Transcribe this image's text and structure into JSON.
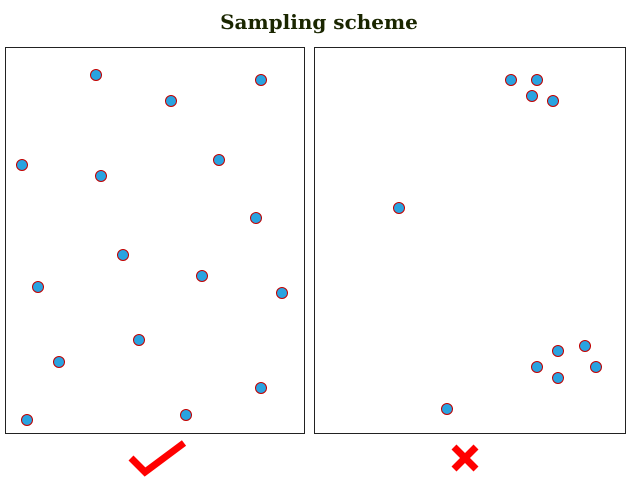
{
  "title": "Sampling scheme",
  "colors": {
    "dot_fill": "#29a3e0",
    "dot_border": "#c00000",
    "mark": "#ff0000",
    "panel_border": "#222222"
  },
  "panels": [
    {
      "name": "good-sampling-panel",
      "verdict_icon": "check-icon",
      "points": [
        [
          90,
          27
        ],
        [
          165,
          53
        ],
        [
          255,
          32
        ],
        [
          16,
          117
        ],
        [
          95,
          128
        ],
        [
          213,
          112
        ],
        [
          250,
          170
        ],
        [
          117,
          207
        ],
        [
          196,
          228
        ],
        [
          32,
          239
        ],
        [
          276,
          245
        ],
        [
          133,
          292
        ],
        [
          53,
          314
        ],
        [
          255,
          340
        ],
        [
          21,
          372
        ],
        [
          180,
          367
        ]
      ]
    },
    {
      "name": "bad-sampling-panel",
      "verdict_icon": "cross-icon",
      "points": [
        [
          196,
          32
        ],
        [
          222,
          32
        ],
        [
          217,
          48
        ],
        [
          238,
          53
        ],
        [
          84,
          160
        ],
        [
          270,
          298
        ],
        [
          243,
          303
        ],
        [
          222,
          319
        ],
        [
          281,
          319
        ],
        [
          243,
          330
        ],
        [
          132,
          361
        ]
      ]
    }
  ]
}
